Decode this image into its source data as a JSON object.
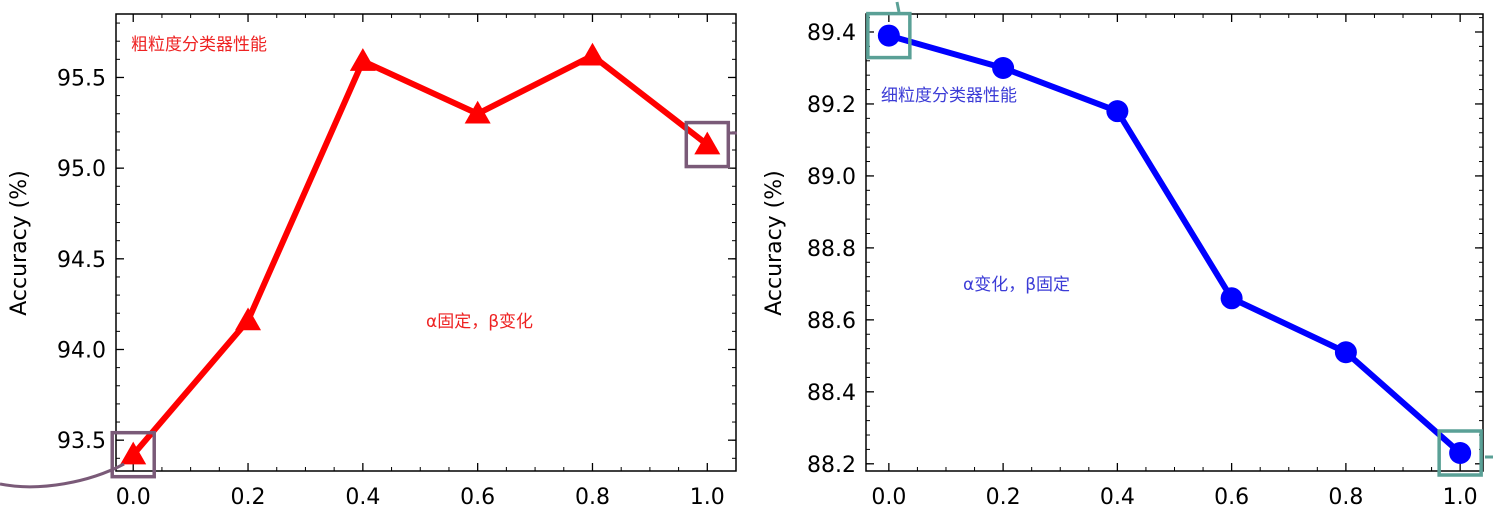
{
  "chart_data": [
    {
      "type": "line",
      "x": [
        0.0,
        0.2,
        0.4,
        0.6,
        0.8,
        1.0
      ],
      "values": [
        93.42,
        94.16,
        95.59,
        95.3,
        95.62,
        95.13
      ],
      "xlim": [
        -0.03,
        1.05
      ],
      "ylim": [
        93.33,
        95.85
      ],
      "xticks": [
        "0.0",
        "0.2",
        "0.4",
        "0.6",
        "0.8",
        "1.0"
      ],
      "yticks": [
        "93.5",
        "94.0",
        "94.5",
        "95.0",
        "95.5"
      ],
      "ylabel": "Accuracy (%)",
      "xlabel": "",
      "color": "#ff0000",
      "marker": "triangle",
      "annotations": [
        {
          "text": "粗粒度分类器性能",
          "color": "#ee2222"
        },
        {
          "text": "α固定，β变化",
          "color": "#ee2222"
        }
      ],
      "highlight_boxes": [
        0,
        5
      ],
      "highlight_color": "#7a5a78"
    },
    {
      "type": "line",
      "x": [
        0.0,
        0.2,
        0.4,
        0.6,
        0.8,
        1.0
      ],
      "values": [
        89.39,
        89.3,
        89.18,
        88.66,
        88.51,
        88.23
      ],
      "xlim": [
        -0.04,
        1.04
      ],
      "ylim": [
        88.18,
        89.45
      ],
      "xticks": [
        "0.0",
        "0.2",
        "0.4",
        "0.6",
        "0.8",
        "1.0"
      ],
      "yticks": [
        "88.2",
        "88.4",
        "88.6",
        "88.8",
        "89.0",
        "89.2",
        "89.4"
      ],
      "ylabel": "Accuracy (%)",
      "xlabel": "",
      "color": "#0000ff",
      "marker": "circle",
      "annotations": [
        {
          "text": "细粒度分类器性能",
          "color": "#3b3bd6"
        },
        {
          "text": "α变化，β固定",
          "color": "#3b3bd6"
        }
      ],
      "highlight_boxes": [
        0,
        5
      ],
      "highlight_color": "#5aa096"
    }
  ]
}
